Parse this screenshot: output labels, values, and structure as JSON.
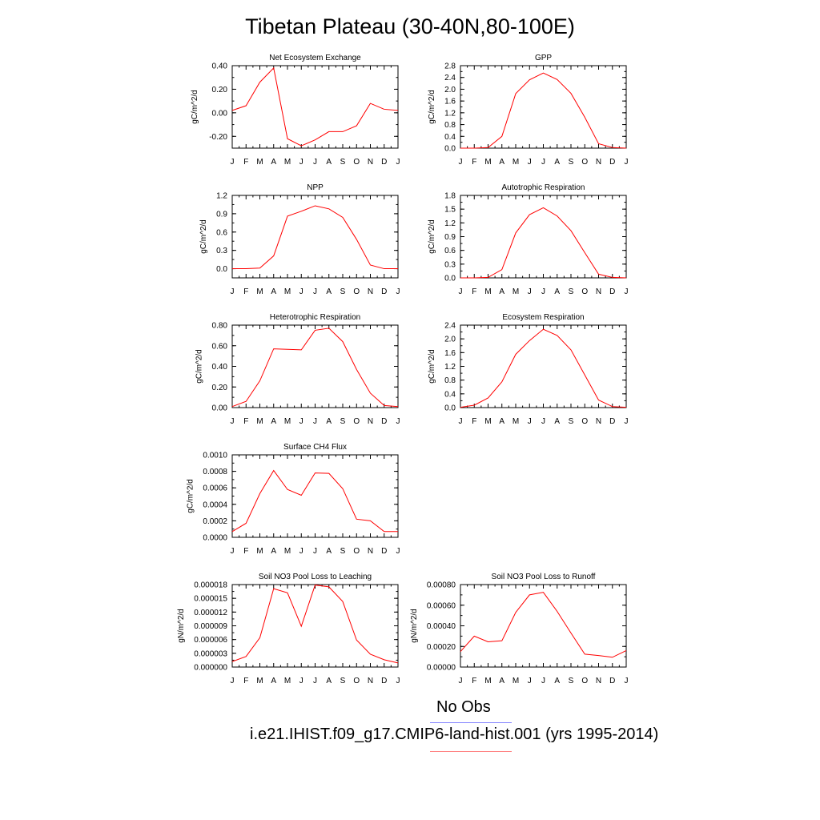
{
  "title": "Tibetan Plateau (30-40N,80-100E)",
  "legend": {
    "obs_label": "No Obs",
    "obs_color": "#8080ff",
    "model_label": "i.e21.IHIST.f09_g17.CMIP6-land-hist.001 (yrs 1995-2014)",
    "model_color": "#ff8080"
  },
  "chart_data": [
    {
      "type": "line",
      "title": "Net Ecosystem Exchange",
      "ylabel": "gC/m^2/d",
      "x": [
        "J",
        "F",
        "M",
        "A",
        "M",
        "J",
        "J",
        "A",
        "S",
        "O",
        "N",
        "D",
        "J"
      ],
      "ylim": [
        -0.3,
        0.4
      ],
      "yticks": [
        "0.40",
        "0.20",
        "0.00",
        "-0.20"
      ],
      "ytick_values": [
        0.4,
        0.2,
        0.0,
        -0.2
      ],
      "series": [
        {
          "color": "#ff0000",
          "values": [
            0.02,
            0.06,
            0.26,
            0.38,
            -0.22,
            -0.28,
            -0.23,
            -0.16,
            -0.16,
            -0.11,
            0.08,
            0.03,
            0.02
          ]
        }
      ]
    },
    {
      "type": "line",
      "title": "GPP",
      "ylabel": "gC/m^2/d",
      "x": [
        "J",
        "F",
        "M",
        "A",
        "M",
        "J",
        "J",
        "A",
        "S",
        "O",
        "N",
        "D",
        "J"
      ],
      "ylim": [
        0,
        2.8
      ],
      "yticks": [
        "2.8",
        "2.4",
        "2.0",
        "1.6",
        "1.2",
        "0.8",
        "0.4",
        "0.0"
      ],
      "ytick_values": [
        2.8,
        2.4,
        2.0,
        1.6,
        1.2,
        0.8,
        0.4,
        0.0
      ],
      "series": [
        {
          "color": "#ff0000",
          "values": [
            0.0,
            0.0,
            0.02,
            0.4,
            1.85,
            2.32,
            2.55,
            2.33,
            1.86,
            1.05,
            0.15,
            0.02,
            0.0
          ]
        }
      ]
    },
    {
      "type": "line",
      "title": "NPP",
      "ylabel": "gC/m^2/d",
      "x": [
        "J",
        "F",
        "M",
        "A",
        "M",
        "J",
        "J",
        "A",
        "S",
        "O",
        "N",
        "D",
        "J"
      ],
      "ylim": [
        -0.15,
        1.2
      ],
      "yticks": [
        "1.2",
        "0.9",
        "0.6",
        "0.3",
        "0.0"
      ],
      "ytick_values": [
        1.2,
        0.9,
        0.6,
        0.3,
        0.0
      ],
      "series": [
        {
          "color": "#ff0000",
          "values": [
            0.0,
            0.0,
            0.01,
            0.21,
            0.86,
            0.94,
            1.03,
            0.98,
            0.84,
            0.48,
            0.06,
            0.0,
            0.0
          ]
        }
      ]
    },
    {
      "type": "line",
      "title": "Autotrophic Respiration",
      "ylabel": "gC/m^2/d",
      "x": [
        "J",
        "F",
        "M",
        "A",
        "M",
        "J",
        "J",
        "A",
        "S",
        "O",
        "N",
        "D",
        "J"
      ],
      "ylim": [
        0,
        1.8
      ],
      "yticks": [
        "1.8",
        "1.5",
        "1.2",
        "0.9",
        "0.6",
        "0.3",
        "0.0"
      ],
      "ytick_values": [
        1.8,
        1.5,
        1.2,
        0.9,
        0.6,
        0.3,
        0.0
      ],
      "series": [
        {
          "color": "#ff0000",
          "values": [
            0.0,
            0.0,
            0.01,
            0.18,
            0.98,
            1.38,
            1.53,
            1.35,
            1.03,
            0.55,
            0.08,
            0.01,
            0.0
          ]
        }
      ]
    },
    {
      "type": "line",
      "title": "Heterotrophic Respiration",
      "ylabel": "gC/m^2/d",
      "x": [
        "J",
        "F",
        "M",
        "A",
        "M",
        "J",
        "J",
        "A",
        "S",
        "O",
        "N",
        "D",
        "J"
      ],
      "ylim": [
        0,
        0.8
      ],
      "yticks": [
        "0.80",
        "0.60",
        "0.40",
        "0.20",
        "0.00"
      ],
      "ytick_values": [
        0.8,
        0.6,
        0.4,
        0.2,
        0.0
      ],
      "series": [
        {
          "color": "#ff0000",
          "values": [
            0.01,
            0.06,
            0.26,
            0.57,
            0.565,
            0.56,
            0.75,
            0.77,
            0.64,
            0.37,
            0.14,
            0.02,
            0.01
          ]
        }
      ]
    },
    {
      "type": "line",
      "title": "Ecosystem Respiration",
      "ylabel": "gC/m^2/d",
      "x": [
        "J",
        "F",
        "M",
        "A",
        "M",
        "J",
        "J",
        "A",
        "S",
        "O",
        "N",
        "D",
        "J"
      ],
      "ylim": [
        0,
        2.4
      ],
      "yticks": [
        "2.4",
        "2.0",
        "1.6",
        "1.2",
        "0.8",
        "0.4",
        "0.0"
      ],
      "ytick_values": [
        2.4,
        2.0,
        1.6,
        1.2,
        0.8,
        0.4,
        0.0
      ],
      "series": [
        {
          "color": "#ff0000",
          "values": [
            0.01,
            0.07,
            0.28,
            0.75,
            1.55,
            1.95,
            2.28,
            2.1,
            1.68,
            0.95,
            0.22,
            0.03,
            0.01
          ]
        }
      ]
    },
    {
      "type": "line",
      "title": "Surface CH4 Flux",
      "ylabel": "gC/m^2/d",
      "x": [
        "J",
        "F",
        "M",
        "A",
        "M",
        "J",
        "J",
        "A",
        "S",
        "O",
        "N",
        "D",
        "J"
      ],
      "ylim": [
        0,
        0.001
      ],
      "yticks": [
        "0.0010",
        "0.0008",
        "0.0006",
        "0.0004",
        "0.0002",
        "0.0000"
      ],
      "ytick_values": [
        0.001,
        0.0008,
        0.0006,
        0.0004,
        0.0002,
        0.0
      ],
      "series": [
        {
          "color": "#ff0000",
          "values": [
            7e-05,
            0.00017,
            0.00053,
            0.00081,
            0.00058,
            0.00051,
            0.00078,
            0.000775,
            0.00059,
            0.00022,
            0.0002,
            7e-05,
            7e-05
          ]
        }
      ]
    },
    {
      "type": "line",
      "title": "Soil NO3 Pool Loss to Leaching",
      "ylabel": "gN/m^2/d",
      "x": [
        "J",
        "F",
        "M",
        "A",
        "M",
        "J",
        "J",
        "A",
        "S",
        "O",
        "N",
        "D",
        "J"
      ],
      "ylim": [
        0,
        1.8e-05
      ],
      "yticks": [
        "0.000018",
        "0.000015",
        "0.000012",
        "0.000009",
        "0.000006",
        "0.000003",
        "0.000000"
      ],
      "ytick_values": [
        1.8e-05,
        1.5e-05,
        1.2e-05,
        9e-06,
        6e-06,
        3e-06,
        0.0
      ],
      "series": [
        {
          "color": "#ff0000",
          "values": [
            1.2e-06,
            2.3e-06,
            6.4e-06,
            1.71e-05,
            1.62e-05,
            8.9e-06,
            1.79e-05,
            1.75e-05,
            1.43e-05,
            5.9e-06,
            2.8e-06,
            1.6e-06,
            9e-07
          ]
        }
      ]
    },
    {
      "type": "line",
      "title": "Soil NO3 Pool Loss to Runoff",
      "ylabel": "gN/m^2/d",
      "x": [
        "J",
        "F",
        "M",
        "A",
        "M",
        "J",
        "J",
        "A",
        "S",
        "O",
        "N",
        "D",
        "J"
      ],
      "ylim": [
        0,
        0.0008
      ],
      "yticks": [
        "0.00080",
        "0.00060",
        "0.00040",
        "0.00020",
        "0.00000"
      ],
      "ytick_values": [
        0.0008,
        0.0006,
        0.0004,
        0.0002,
        0.0
      ],
      "series": [
        {
          "color": "#ff0000",
          "values": [
            0.00015,
            0.0003,
            0.000245,
            0.000255,
            0.00053,
            0.0007,
            0.000725,
            0.00054,
            0.00033,
            0.000125,
            0.000112,
            9.5e-05,
            0.00016
          ]
        }
      ]
    }
  ]
}
